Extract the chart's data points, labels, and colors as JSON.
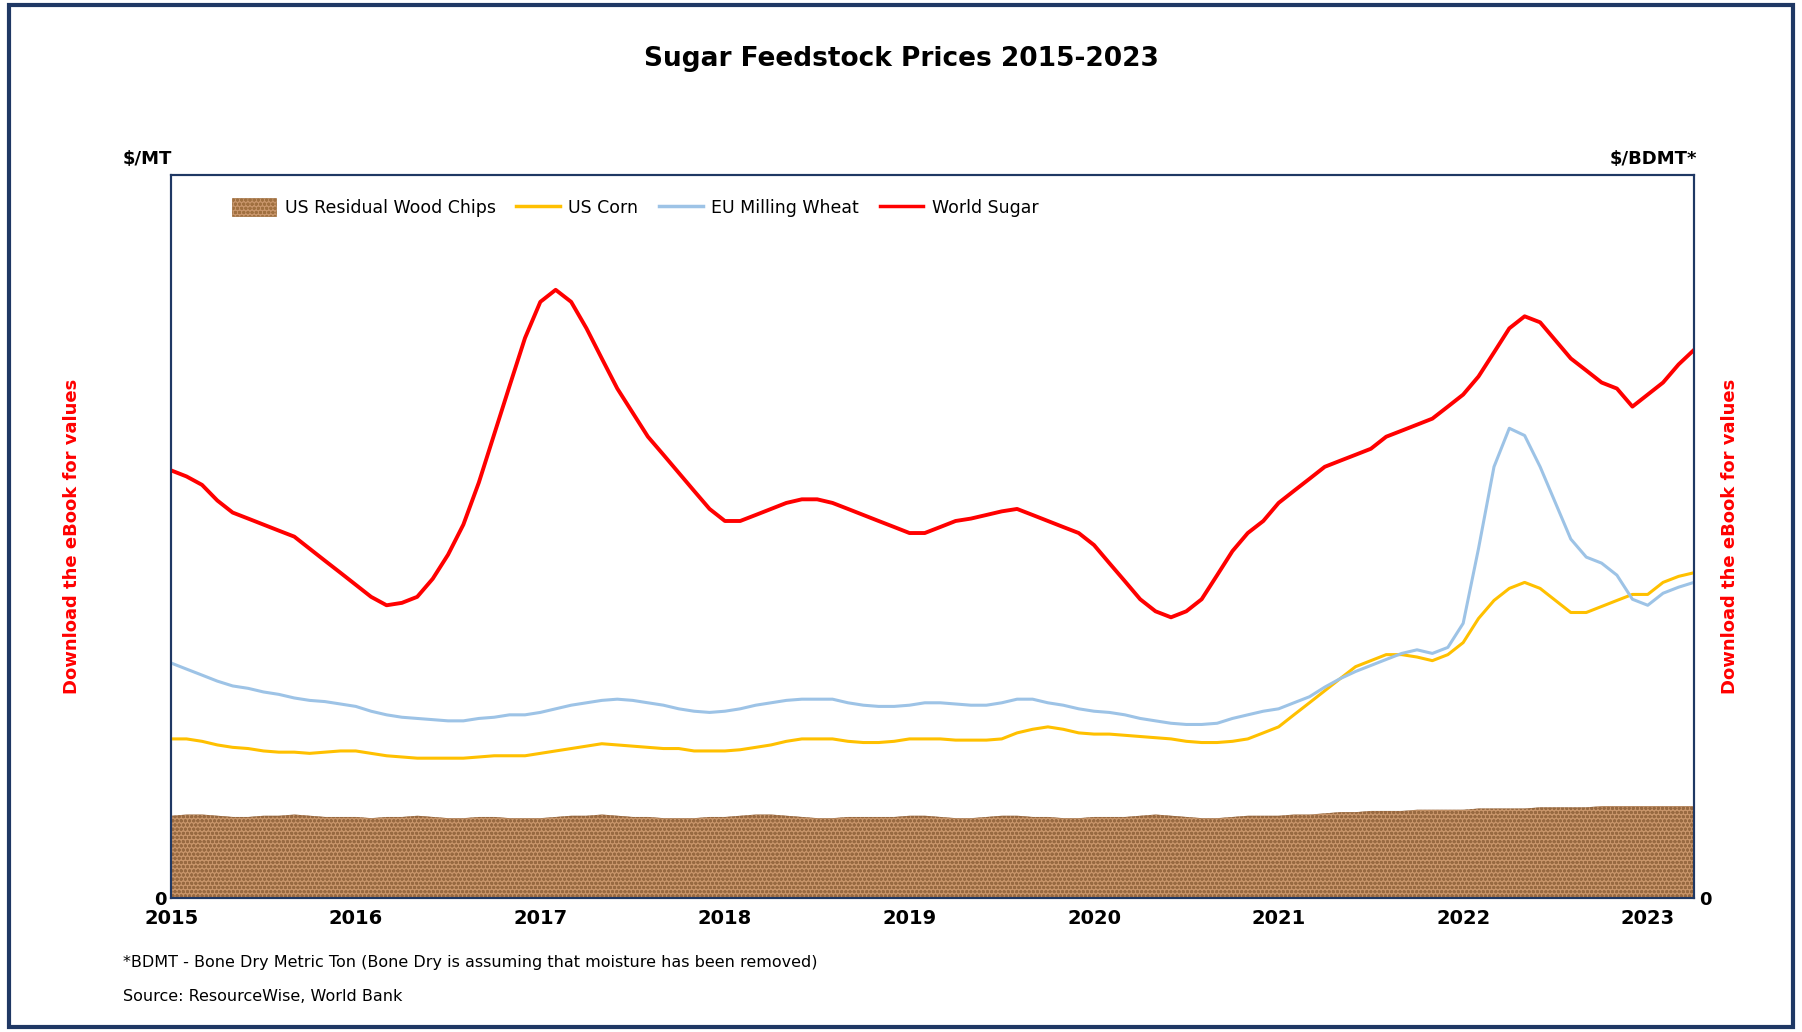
{
  "title": "Sugar Feedstock Prices 2015-2023",
  "ylabel_left": "$/MT",
  "ylabel_right": "$/BDMT*",
  "footnote1": "*BDMT - Bone Dry Metric Ton (Bone Dry is assuming that moisture has been removed)",
  "footnote2": "Source: ResourceWise, World Bank",
  "xlim": [
    2015.0,
    2023.25
  ],
  "ylim": [
    0,
    600
  ],
  "yticks": [
    0
  ],
  "xtick_positions": [
    2015,
    2016,
    2017,
    2018,
    2019,
    2020,
    2021,
    2022,
    2023
  ],
  "xtick_labels": [
    "2015",
    "2016",
    "2017",
    "2018",
    "2019",
    "2020",
    "2021",
    "2022",
    "2023"
  ],
  "watermark": "Download the eBook for values",
  "background_color": "#ffffff",
  "outer_border_color": "#1f3864",
  "plot_border_color": "#1f3864",
  "wood_chips_color": "#c8956a",
  "wood_chips_edge_color": "#a07040",
  "corn_color": "#ffc000",
  "wheat_color": "#9dc3e6",
  "sugar_color": "#ff0000",
  "wood_chips_x": [
    2015.0,
    2015.083,
    2015.167,
    2015.25,
    2015.333,
    2015.417,
    2015.5,
    2015.583,
    2015.667,
    2015.75,
    2015.833,
    2015.917,
    2016.0,
    2016.083,
    2016.167,
    2016.25,
    2016.333,
    2016.417,
    2016.5,
    2016.583,
    2016.667,
    2016.75,
    2016.833,
    2016.917,
    2017.0,
    2017.083,
    2017.167,
    2017.25,
    2017.333,
    2017.417,
    2017.5,
    2017.583,
    2017.667,
    2017.75,
    2017.833,
    2017.917,
    2018.0,
    2018.083,
    2018.167,
    2018.25,
    2018.333,
    2018.417,
    2018.5,
    2018.583,
    2018.667,
    2018.75,
    2018.833,
    2018.917,
    2019.0,
    2019.083,
    2019.167,
    2019.25,
    2019.333,
    2019.417,
    2019.5,
    2019.583,
    2019.667,
    2019.75,
    2019.833,
    2019.917,
    2020.0,
    2020.083,
    2020.167,
    2020.25,
    2020.333,
    2020.417,
    2020.5,
    2020.583,
    2020.667,
    2020.75,
    2020.833,
    2020.917,
    2021.0,
    2021.083,
    2021.167,
    2021.25,
    2021.333,
    2021.417,
    2021.5,
    2021.583,
    2021.667,
    2021.75,
    2021.833,
    2021.917,
    2022.0,
    2022.083,
    2022.167,
    2022.25,
    2022.333,
    2022.417,
    2022.5,
    2022.583,
    2022.667,
    2022.75,
    2022.833,
    2022.917,
    2023.0,
    2023.083,
    2023.167,
    2023.25
  ],
  "wood_chips_y": [
    68,
    69,
    69,
    68,
    67,
    67,
    68,
    68,
    69,
    68,
    67,
    67,
    67,
    66,
    67,
    67,
    68,
    67,
    66,
    66,
    67,
    67,
    66,
    66,
    66,
    67,
    68,
    68,
    69,
    68,
    67,
    67,
    66,
    66,
    66,
    67,
    67,
    68,
    69,
    69,
    68,
    67,
    66,
    66,
    67,
    67,
    67,
    67,
    68,
    68,
    67,
    66,
    66,
    67,
    68,
    68,
    67,
    67,
    66,
    66,
    67,
    67,
    67,
    68,
    69,
    68,
    67,
    66,
    66,
    67,
    68,
    68,
    68,
    69,
    69,
    70,
    71,
    71,
    72,
    72,
    72,
    73,
    73,
    73,
    73,
    74,
    74,
    74,
    74,
    75,
    75,
    75,
    75,
    76,
    76,
    76,
    76,
    76,
    76,
    76
  ],
  "corn_x": [
    2015.0,
    2015.083,
    2015.167,
    2015.25,
    2015.333,
    2015.417,
    2015.5,
    2015.583,
    2015.667,
    2015.75,
    2015.833,
    2015.917,
    2016.0,
    2016.083,
    2016.167,
    2016.25,
    2016.333,
    2016.417,
    2016.5,
    2016.583,
    2016.667,
    2016.75,
    2016.833,
    2016.917,
    2017.0,
    2017.083,
    2017.167,
    2017.25,
    2017.333,
    2017.417,
    2017.5,
    2017.583,
    2017.667,
    2017.75,
    2017.833,
    2017.917,
    2018.0,
    2018.083,
    2018.167,
    2018.25,
    2018.333,
    2018.417,
    2018.5,
    2018.583,
    2018.667,
    2018.75,
    2018.833,
    2018.917,
    2019.0,
    2019.083,
    2019.167,
    2019.25,
    2019.333,
    2019.417,
    2019.5,
    2019.583,
    2019.667,
    2019.75,
    2019.833,
    2019.917,
    2020.0,
    2020.083,
    2020.167,
    2020.25,
    2020.333,
    2020.417,
    2020.5,
    2020.583,
    2020.667,
    2020.75,
    2020.833,
    2020.917,
    2021.0,
    2021.083,
    2021.167,
    2021.25,
    2021.333,
    2021.417,
    2021.5,
    2021.583,
    2021.667,
    2021.75,
    2021.833,
    2021.917,
    2022.0,
    2022.083,
    2022.167,
    2022.25,
    2022.333,
    2022.417,
    2022.5,
    2022.583,
    2022.667,
    2022.75,
    2022.833,
    2022.917,
    2023.0,
    2023.083,
    2023.167,
    2023.25
  ],
  "corn_y": [
    132,
    132,
    130,
    127,
    125,
    124,
    122,
    121,
    121,
    120,
    121,
    122,
    122,
    120,
    118,
    117,
    116,
    116,
    116,
    116,
    117,
    118,
    118,
    118,
    120,
    122,
    124,
    126,
    128,
    127,
    126,
    125,
    124,
    124,
    122,
    122,
    122,
    123,
    125,
    127,
    130,
    132,
    132,
    132,
    130,
    129,
    129,
    130,
    132,
    132,
    132,
    131,
    131,
    131,
    132,
    137,
    140,
    142,
    140,
    137,
    136,
    136,
    135,
    134,
    133,
    132,
    130,
    129,
    129,
    130,
    132,
    137,
    142,
    152,
    162,
    172,
    182,
    192,
    197,
    202,
    202,
    200,
    197,
    202,
    212,
    232,
    247,
    257,
    262,
    257,
    247,
    237,
    237,
    242,
    247,
    252,
    252,
    262,
    267,
    270
  ],
  "wheat_x": [
    2015.0,
    2015.083,
    2015.167,
    2015.25,
    2015.333,
    2015.417,
    2015.5,
    2015.583,
    2015.667,
    2015.75,
    2015.833,
    2015.917,
    2016.0,
    2016.083,
    2016.167,
    2016.25,
    2016.333,
    2016.417,
    2016.5,
    2016.583,
    2016.667,
    2016.75,
    2016.833,
    2016.917,
    2017.0,
    2017.083,
    2017.167,
    2017.25,
    2017.333,
    2017.417,
    2017.5,
    2017.583,
    2017.667,
    2017.75,
    2017.833,
    2017.917,
    2018.0,
    2018.083,
    2018.167,
    2018.25,
    2018.333,
    2018.417,
    2018.5,
    2018.583,
    2018.667,
    2018.75,
    2018.833,
    2018.917,
    2019.0,
    2019.083,
    2019.167,
    2019.25,
    2019.333,
    2019.417,
    2019.5,
    2019.583,
    2019.667,
    2019.75,
    2019.833,
    2019.917,
    2020.0,
    2020.083,
    2020.167,
    2020.25,
    2020.333,
    2020.417,
    2020.5,
    2020.583,
    2020.667,
    2020.75,
    2020.833,
    2020.917,
    2021.0,
    2021.083,
    2021.167,
    2021.25,
    2021.333,
    2021.417,
    2021.5,
    2021.583,
    2021.667,
    2021.75,
    2021.833,
    2021.917,
    2022.0,
    2022.083,
    2022.167,
    2022.25,
    2022.333,
    2022.417,
    2022.5,
    2022.583,
    2022.667,
    2022.75,
    2022.833,
    2022.917,
    2023.0,
    2023.083,
    2023.167,
    2023.25
  ],
  "wheat_y": [
    195,
    190,
    185,
    180,
    176,
    174,
    171,
    169,
    166,
    164,
    163,
    161,
    159,
    155,
    152,
    150,
    149,
    148,
    147,
    147,
    149,
    150,
    152,
    152,
    154,
    157,
    160,
    162,
    164,
    165,
    164,
    162,
    160,
    157,
    155,
    154,
    155,
    157,
    160,
    162,
    164,
    165,
    165,
    165,
    162,
    160,
    159,
    159,
    160,
    162,
    162,
    161,
    160,
    160,
    162,
    165,
    165,
    162,
    160,
    157,
    155,
    154,
    152,
    149,
    147,
    145,
    144,
    144,
    145,
    149,
    152,
    155,
    157,
    162,
    167,
    175,
    182,
    188,
    193,
    198,
    203,
    206,
    203,
    208,
    228,
    290,
    358,
    390,
    384,
    358,
    328,
    298,
    283,
    278,
    268,
    248,
    243,
    253,
    258,
    262
  ],
  "sugar_x": [
    2015.0,
    2015.083,
    2015.167,
    2015.25,
    2015.333,
    2015.417,
    2015.5,
    2015.583,
    2015.667,
    2015.75,
    2015.833,
    2015.917,
    2016.0,
    2016.083,
    2016.167,
    2016.25,
    2016.333,
    2016.417,
    2016.5,
    2016.583,
    2016.667,
    2016.75,
    2016.833,
    2016.917,
    2017.0,
    2017.083,
    2017.167,
    2017.25,
    2017.333,
    2017.417,
    2017.5,
    2017.583,
    2017.667,
    2017.75,
    2017.833,
    2017.917,
    2018.0,
    2018.083,
    2018.167,
    2018.25,
    2018.333,
    2018.417,
    2018.5,
    2018.583,
    2018.667,
    2018.75,
    2018.833,
    2018.917,
    2019.0,
    2019.083,
    2019.167,
    2019.25,
    2019.333,
    2019.417,
    2019.5,
    2019.583,
    2019.667,
    2019.75,
    2019.833,
    2019.917,
    2020.0,
    2020.083,
    2020.167,
    2020.25,
    2020.333,
    2020.417,
    2020.5,
    2020.583,
    2020.667,
    2020.75,
    2020.833,
    2020.917,
    2021.0,
    2021.083,
    2021.167,
    2021.25,
    2021.333,
    2021.417,
    2021.5,
    2021.583,
    2021.667,
    2021.75,
    2021.833,
    2021.917,
    2022.0,
    2022.083,
    2022.167,
    2022.25,
    2022.333,
    2022.417,
    2022.5,
    2022.583,
    2022.667,
    2022.75,
    2022.833,
    2022.917,
    2023.0,
    2023.083,
    2023.167,
    2023.25
  ],
  "sugar_y": [
    355,
    350,
    343,
    330,
    320,
    315,
    310,
    305,
    300,
    290,
    280,
    270,
    260,
    250,
    243,
    245,
    250,
    265,
    285,
    310,
    345,
    385,
    425,
    465,
    495,
    505,
    495,
    473,
    448,
    423,
    403,
    383,
    368,
    353,
    338,
    323,
    313,
    313,
    318,
    323,
    328,
    331,
    331,
    328,
    323,
    318,
    313,
    308,
    303,
    303,
    308,
    313,
    315,
    318,
    321,
    323,
    318,
    313,
    308,
    303,
    293,
    278,
    263,
    248,
    238,
    233,
    238,
    248,
    268,
    288,
    303,
    313,
    328,
    338,
    348,
    358,
    363,
    368,
    373,
    383,
    388,
    393,
    398,
    408,
    418,
    433,
    453,
    473,
    483,
    478,
    463,
    448,
    438,
    428,
    423,
    408,
    418,
    428,
    443,
    455
  ]
}
